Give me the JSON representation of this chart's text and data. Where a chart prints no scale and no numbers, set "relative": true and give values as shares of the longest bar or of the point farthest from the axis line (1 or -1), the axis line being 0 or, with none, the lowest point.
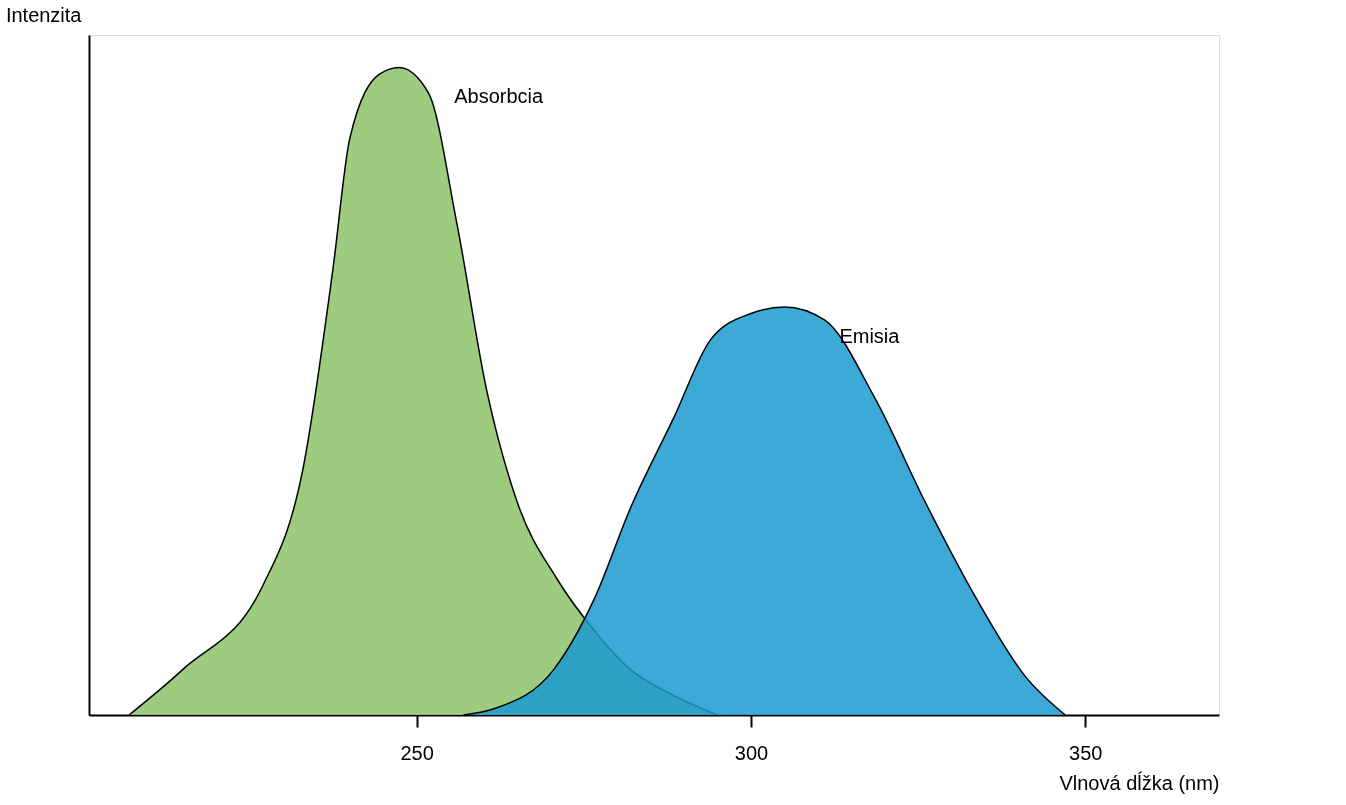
{
  "chart_data": {
    "type": "area",
    "relative": true,
    "xlabel": "Vlnová dĺžka (nm)",
    "ylabel": "Intenzita",
    "xlim": [
      201,
      370
    ],
    "xticks": [
      250,
      300,
      350
    ],
    "grid": false,
    "series": [
      {
        "name": "Absorbcia",
        "color": "#8cc26a",
        "x": [
          207,
          215,
          227,
          233,
          237.5,
          240,
          244.5,
          247.4,
          251.8,
          256,
          260.5,
          265,
          271,
          276.6,
          282,
          288.5,
          295
        ],
        "values": [
          0,
          0.07,
          0.2,
          0.38,
          0.69,
          0.89,
          0.99,
          1.0,
          0.96,
          0.76,
          0.5,
          0.33,
          0.21,
          0.13,
          0.07,
          0.03,
          0
        ]
      },
      {
        "name": "Emisia",
        "color": "#1a9ad0",
        "x": [
          257,
          261.7,
          270.5,
          276.6,
          282,
          288.5,
          294,
          300,
          305,
          311,
          318.5,
          326,
          333.7,
          341,
          347
        ],
        "values": [
          0,
          0.01,
          0.07,
          0.18,
          0.32,
          0.46,
          0.58,
          0.62,
          0.63,
          0.61,
          0.49,
          0.33,
          0.18,
          0.06,
          0
        ]
      }
    ]
  }
}
